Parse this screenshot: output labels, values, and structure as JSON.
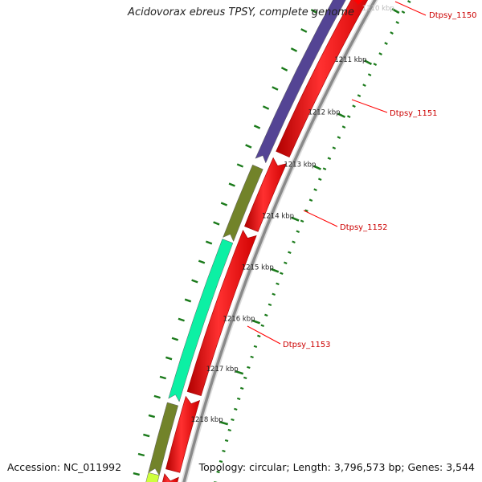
{
  "title": "Acidovorax ebreus TPSY, complete genome",
  "footer": {
    "accession": "Accession: NC_011992",
    "summary": "Topology: circular; Length: 3,796,573 bp; Genes: 3,544"
  },
  "ruler": {
    "ticks": [
      {
        "label": "1210 kbp",
        "faded": true
      },
      {
        "label": "1211 kbp"
      },
      {
        "label": "1212 kbp"
      },
      {
        "label": "1213 kbp"
      },
      {
        "label": "1214 kbp"
      },
      {
        "label": "1215 kbp"
      },
      {
        "label": "1216 kbp"
      },
      {
        "label": "1217 kbp"
      },
      {
        "label": "1218 kbp"
      }
    ]
  },
  "genes": [
    {
      "label": "Dtpsy_1150",
      "color": "#ff0000"
    },
    {
      "label": "Dtpsy_1151",
      "color": "#4b3b8f"
    },
    {
      "label": "Dtpsy_1152",
      "color": "#6b7d1f"
    },
    {
      "label": "Dtpsy_1153",
      "color": "#00f0a0"
    }
  ],
  "colors": {
    "backbone": "#8a8a8a",
    "forward_track": "#ff0000",
    "tick": "#1a7a1a",
    "label_line": "#ff0000",
    "label_text": "#cc0000",
    "yellow_green": "#ccff33"
  }
}
